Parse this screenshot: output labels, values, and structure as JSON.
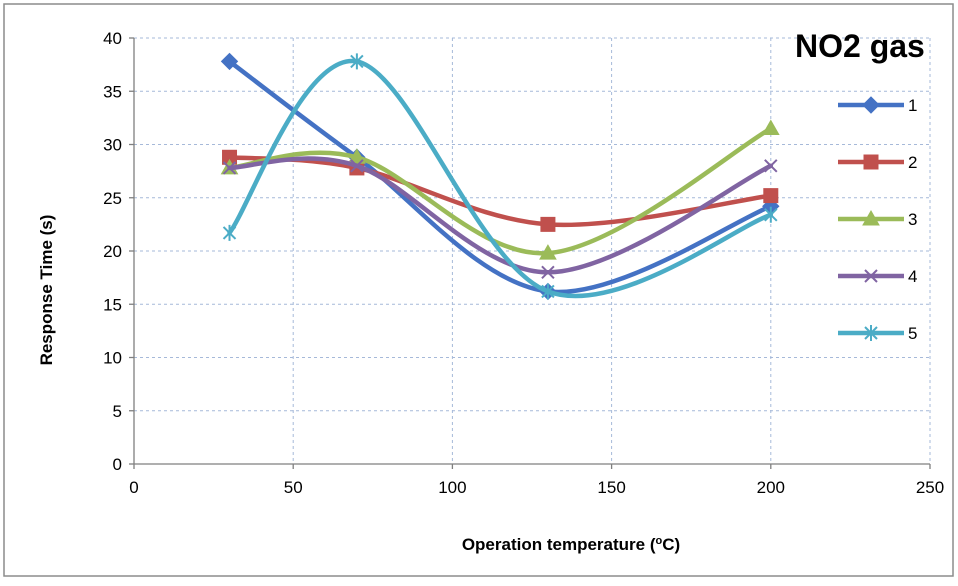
{
  "chart_data": {
    "type": "line",
    "title": "NO2 gas",
    "xlabel": "Operation temperature (",
    "xlabel_sup": "o",
    "xlabel_end": "C)",
    "ylabel": "Response Time (s)",
    "xlim": [
      0,
      250
    ],
    "ylim": [
      0,
      40
    ],
    "xticks": [
      0,
      50,
      100,
      150,
      200,
      250
    ],
    "yticks": [
      0,
      5,
      10,
      15,
      20,
      25,
      30,
      35,
      40
    ],
    "grid": true,
    "smooth": true,
    "legend_position": "right",
    "x": [
      30,
      70,
      130,
      200
    ],
    "series": [
      {
        "name": "1",
        "values": [
          37.8,
          28.8,
          16.2,
          24.2
        ],
        "color": "#4472C4",
        "marker": "diamond"
      },
      {
        "name": "2",
        "values": [
          28.8,
          27.8,
          22.5,
          25.2
        ],
        "color": "#C0504D",
        "marker": "square"
      },
      {
        "name": "3",
        "values": [
          27.8,
          28.8,
          19.8,
          31.5
        ],
        "color": "#9BBB59",
        "marker": "triangle"
      },
      {
        "name": "4",
        "values": [
          27.8,
          28.0,
          18.0,
          28.0
        ],
        "color": "#8064A2",
        "marker": "x"
      },
      {
        "name": "5",
        "values": [
          21.7,
          37.8,
          16.2,
          23.4
        ],
        "color": "#4BACC6",
        "marker": "star"
      }
    ]
  }
}
